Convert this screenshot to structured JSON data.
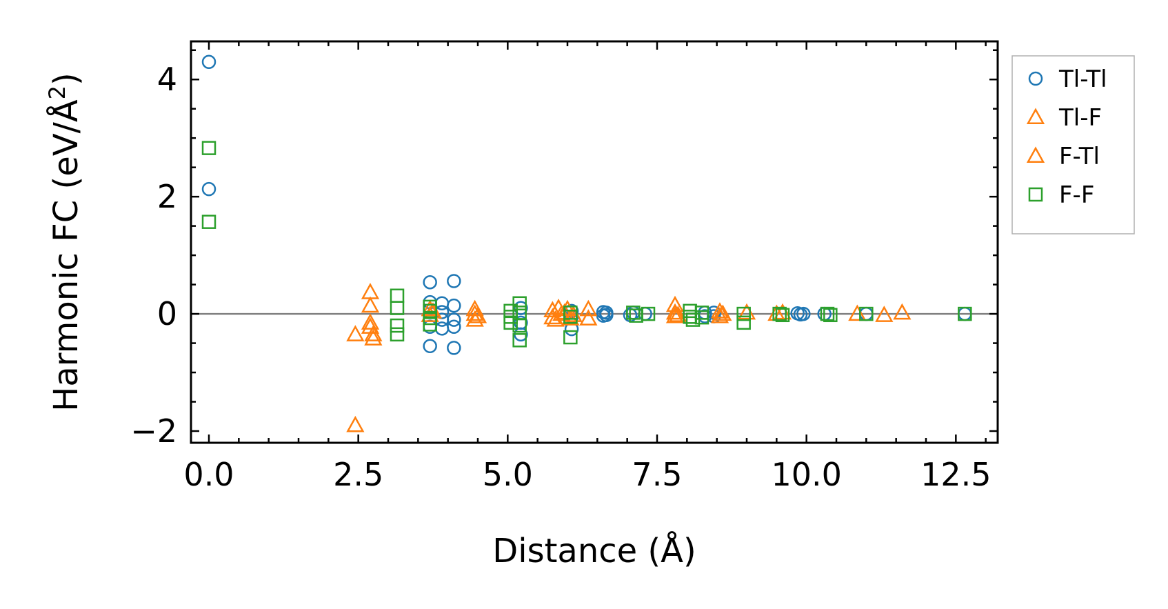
{
  "chart_data": {
    "type": "scatter",
    "title": "",
    "xlabel": "Distance (Å)",
    "ylabel": "Harmonic FC (eV/Å²)",
    "ylabel_main": "Harmonic FC (eV/Å",
    "ylabel_sup": "2",
    "ylabel_close": ")",
    "xlim": [
      -0.3,
      13.2
    ],
    "ylim": [
      -2.2,
      4.65
    ],
    "xticks": [
      0.0,
      2.5,
      5.0,
      7.5,
      10.0,
      12.5
    ],
    "xtick_labels": [
      "0.0",
      "2.5",
      "5.0",
      "7.5",
      "10.0",
      "12.5"
    ],
    "yticks": [
      -2,
      0,
      2,
      4
    ],
    "ytick_labels": [
      "−2",
      "0",
      "2",
      "4"
    ],
    "zero_line": true,
    "legend_position": "outside-right-top",
    "series": [
      {
        "name": "Tl-Tl",
        "marker": "circle",
        "color": "#1f77b4",
        "points": [
          [
            0.0,
            4.3
          ],
          [
            0.0,
            2.13
          ],
          [
            3.7,
            0.54
          ],
          [
            3.7,
            0.2
          ],
          [
            3.7,
            -0.22
          ],
          [
            3.7,
            -0.55
          ],
          [
            3.9,
            0.18
          ],
          [
            3.9,
            0.03
          ],
          [
            3.9,
            -0.1
          ],
          [
            3.9,
            -0.25
          ],
          [
            4.1,
            0.56
          ],
          [
            4.1,
            0.14
          ],
          [
            4.1,
            -0.1
          ],
          [
            4.1,
            -0.22
          ],
          [
            4.1,
            -0.58
          ],
          [
            5.22,
            0.1
          ],
          [
            5.22,
            -0.15
          ],
          [
            5.22,
            -0.35
          ],
          [
            6.07,
            0.05
          ],
          [
            6.07,
            -0.05
          ],
          [
            6.07,
            -0.26
          ],
          [
            6.6,
            0.03
          ],
          [
            6.6,
            -0.03
          ],
          [
            6.65,
            0.02
          ],
          [
            6.65,
            -0.02
          ],
          [
            7.05,
            -0.02
          ],
          [
            7.1,
            0.02
          ],
          [
            7.3,
            0.0
          ],
          [
            8.3,
            0.02
          ],
          [
            8.3,
            -0.04
          ],
          [
            8.45,
            0.02
          ],
          [
            8.45,
            -0.04
          ],
          [
            9.85,
            0.01
          ],
          [
            9.9,
            -0.01
          ],
          [
            9.95,
            0.0
          ],
          [
            10.3,
            0.0
          ],
          [
            11.0,
            0.0
          ],
          [
            12.65,
            0.0
          ]
        ]
      },
      {
        "name": "Tl-F",
        "marker": "triangle",
        "color": "#ff7f0e",
        "points": [
          [
            2.45,
            -0.35
          ],
          [
            2.45,
            -1.9
          ],
          [
            2.7,
            0.37
          ],
          [
            2.7,
            0.14
          ],
          [
            2.7,
            -0.15
          ],
          [
            2.7,
            -0.22
          ],
          [
            2.75,
            -0.35
          ],
          [
            2.75,
            -0.42
          ],
          [
            3.7,
            0.08
          ],
          [
            3.7,
            -0.02
          ],
          [
            4.45,
            0.08
          ],
          [
            4.45,
            0.0
          ],
          [
            4.45,
            -0.1
          ],
          [
            5.75,
            0.06
          ],
          [
            5.75,
            -0.06
          ],
          [
            5.85,
            0.1
          ],
          [
            5.95,
            0.02
          ],
          [
            6.05,
            -0.08
          ],
          [
            6.35,
            0.08
          ],
          [
            6.35,
            -0.08
          ],
          [
            7.8,
            0.15
          ],
          [
            7.8,
            0.02
          ],
          [
            7.8,
            -0.04
          ],
          [
            8.55,
            0.04
          ],
          [
            8.55,
            -0.04
          ],
          [
            9.5,
            0.0
          ],
          [
            9.6,
            0.02
          ],
          [
            10.85,
            0.0
          ],
          [
            11.3,
            -0.02
          ],
          [
            11.6,
            0.02
          ]
        ]
      },
      {
        "name": "F-Tl",
        "marker": "triangle",
        "color": "#ff7f0e",
        "points": [
          [
            3.75,
            0.04
          ],
          [
            4.5,
            -0.04
          ],
          [
            5.8,
            -0.1
          ],
          [
            5.9,
            0.0
          ],
          [
            6.0,
            0.08
          ],
          [
            6.1,
            -0.02
          ],
          [
            7.85,
            -0.02
          ],
          [
            8.6,
            0.0
          ],
          [
            9.0,
            0.02
          ]
        ]
      },
      {
        "name": "F-F",
        "marker": "square",
        "color": "#2ca02c",
        "points": [
          [
            0.0,
            2.83
          ],
          [
            0.0,
            1.57
          ],
          [
            3.15,
            0.31
          ],
          [
            3.15,
            0.1
          ],
          [
            3.15,
            -0.2
          ],
          [
            3.15,
            -0.35
          ],
          [
            3.7,
            0.12
          ],
          [
            3.7,
            0.05
          ],
          [
            3.7,
            -0.07
          ],
          [
            3.7,
            -0.18
          ],
          [
            5.05,
            0.05
          ],
          [
            5.05,
            -0.05
          ],
          [
            5.05,
            -0.15
          ],
          [
            5.2,
            0.18
          ],
          [
            5.2,
            0.02
          ],
          [
            5.2,
            -0.2
          ],
          [
            5.2,
            -0.45
          ],
          [
            6.05,
            0.02
          ],
          [
            6.05,
            -0.05
          ],
          [
            6.05,
            -0.4
          ],
          [
            7.1,
            0.02
          ],
          [
            7.15,
            -0.03
          ],
          [
            7.35,
            0.0
          ],
          [
            8.05,
            0.05
          ],
          [
            8.05,
            -0.05
          ],
          [
            8.1,
            -0.1
          ],
          [
            8.25,
            0.02
          ],
          [
            8.25,
            -0.06
          ],
          [
            8.95,
            0.0
          ],
          [
            8.95,
            -0.15
          ],
          [
            9.55,
            0.0
          ],
          [
            9.6,
            -0.02
          ],
          [
            10.35,
            0.0
          ],
          [
            10.4,
            -0.02
          ],
          [
            11.0,
            0.0
          ],
          [
            12.65,
            0.0
          ]
        ]
      }
    ]
  }
}
